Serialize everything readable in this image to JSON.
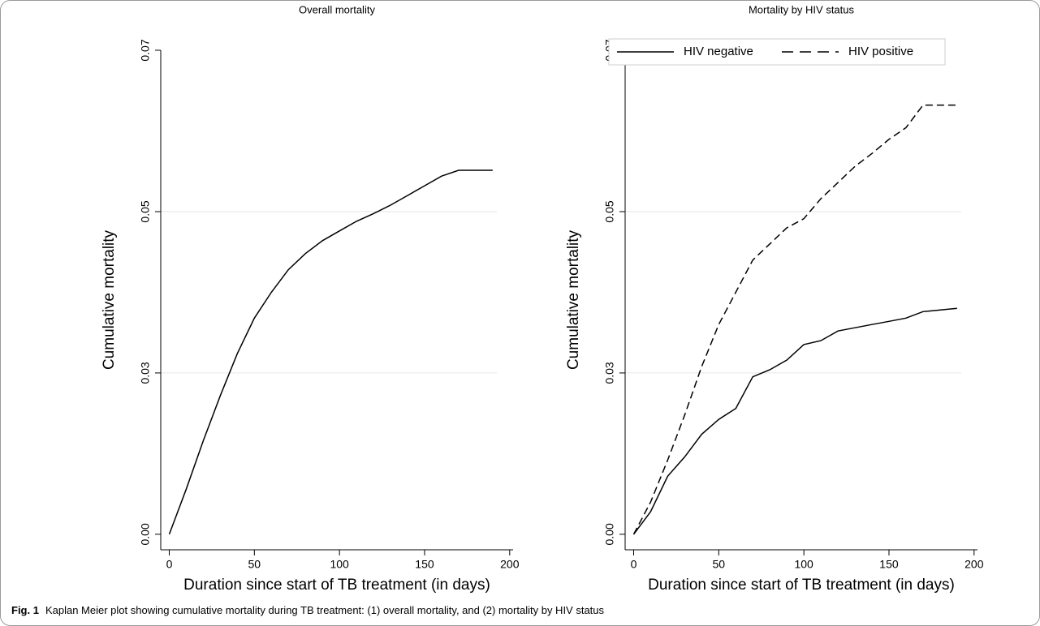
{
  "chart_data": [
    {
      "type": "line",
      "title": "Overall mortality",
      "xlabel": "Duration since start of TB treatment (in days)",
      "ylabel": "Cumulative mortality",
      "x": [
        0,
        10,
        20,
        30,
        40,
        50,
        60,
        70,
        80,
        90,
        100,
        110,
        120,
        130,
        140,
        150,
        160,
        170,
        190
      ],
      "series": [
        {
          "color": "#000000",
          "line_style": "solid",
          "values": [
            0,
            0.007,
            0.0145,
            0.0215,
            0.028,
            0.0335,
            0.0375,
            0.041,
            0.0435,
            0.0455,
            0.047,
            0.0485,
            0.0497,
            0.051,
            0.0525,
            0.054,
            0.0555,
            0.0564,
            0.0564
          ]
        }
      ],
      "xlim": [
        -5,
        202
      ],
      "xticks": [
        0,
        50,
        100,
        150,
        200
      ],
      "ylim": [
        -0.0024,
        0.075
      ],
      "yticks": [
        {
          "value": 0,
          "label": "0.00"
        },
        {
          "value": 0.025,
          "label": "0.03"
        },
        {
          "value": 0.05,
          "label": "0.05"
        },
        {
          "value": 0.075,
          "label": "0.07"
        }
      ],
      "grid": true
    },
    {
      "type": "line",
      "title": "Mortality by HIV status",
      "xlabel": "Duration since start of TB treatment (in days)",
      "ylabel": "Cumulative mortality",
      "x": [
        0,
        10,
        20,
        30,
        40,
        50,
        60,
        70,
        80,
        90,
        100,
        110,
        120,
        130,
        140,
        150,
        160,
        170,
        190
      ],
      "series": [
        {
          "name": "HIV negative",
          "color": "#000000",
          "line_style": "solid",
          "values": [
            0,
            0.0035,
            0.009,
            0.012,
            0.0155,
            0.0178,
            0.0195,
            0.0244,
            0.0255,
            0.027,
            0.0294,
            0.03,
            0.0315,
            0.032,
            0.0325,
            0.033,
            0.0335,
            0.0345,
            0.035
          ]
        },
        {
          "name": "HIV positive",
          "color": "#000000",
          "line_style": "dashed",
          "values": [
            0,
            0.005,
            0.0115,
            0.0185,
            0.026,
            0.0325,
            0.0375,
            0.0425,
            0.045,
            0.0475,
            0.0489,
            0.052,
            0.0545,
            0.057,
            0.059,
            0.0612,
            0.063,
            0.0665,
            0.0665
          ]
        }
      ],
      "xlim": [
        -5,
        202
      ],
      "xticks": [
        0,
        50,
        100,
        150,
        200
      ],
      "ylim": [
        -0.0024,
        0.075
      ],
      "yticks": [
        {
          "value": 0,
          "label": "0.00"
        },
        {
          "value": 0.025,
          "label": "0.03"
        },
        {
          "value": 0.05,
          "label": "0.05"
        },
        {
          "value": 0.075,
          "label": "0.07"
        }
      ],
      "grid": true,
      "legend": "top"
    }
  ],
  "caption": {
    "label": "Fig. 1",
    "text": "Kaplan Meier plot showing cumulative mortality during TB treatment: (1) overall mortality, and (2) mortality by HIV status"
  }
}
